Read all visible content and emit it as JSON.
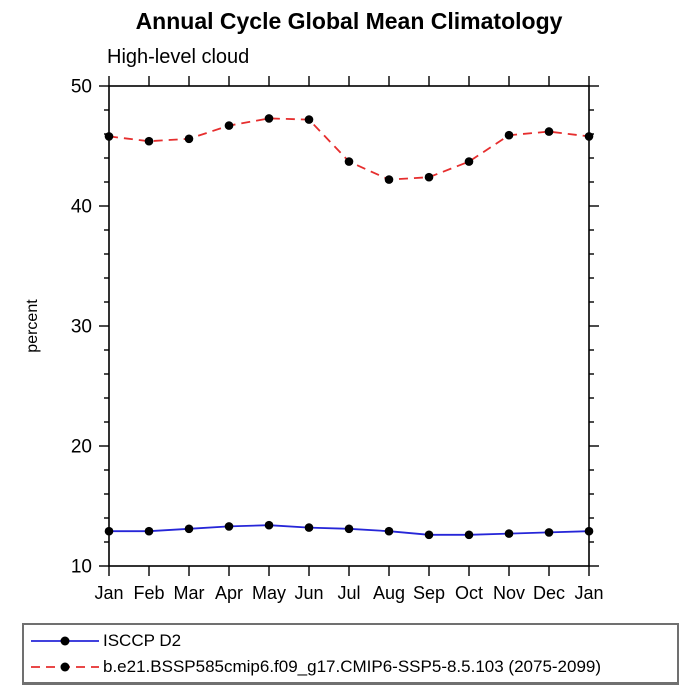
{
  "header": {
    "title": "Annual Cycle Global Mean Climatology",
    "subtitle": "High-level cloud"
  },
  "chart_data": {
    "type": "line",
    "title": "Annual Cycle Global Mean Climatology",
    "subtitle": "High-level cloud",
    "xlabel": "",
    "ylabel": "percent",
    "ylim": [
      10,
      50
    ],
    "ytick_major": [
      10,
      20,
      30,
      40,
      50
    ],
    "ytick_minor_step": 2,
    "grid": false,
    "axis_color": "#000000",
    "marker_color": "#000000",
    "categories": [
      "Jan",
      "Feb",
      "Mar",
      "Apr",
      "May",
      "Jun",
      "Jul",
      "Aug",
      "Sep",
      "Oct",
      "Nov",
      "Dec",
      "Jan"
    ],
    "series": [
      {
        "name": "ISCCP D2",
        "line_style": "solid",
        "color": "#2626d8",
        "values": [
          12.9,
          12.9,
          13.1,
          13.3,
          13.4,
          13.2,
          13.1,
          12.9,
          12.6,
          12.6,
          12.7,
          12.8,
          12.9
        ]
      },
      {
        "name": "b.e21.BSSP585cmip6.f09_g17.CMIP6-SSP5-8.5.103 (2075-2099)",
        "line_style": "dashed",
        "color": "#e62e2e",
        "values": [
          45.8,
          45.4,
          45.6,
          46.7,
          47.3,
          47.2,
          43.7,
          42.2,
          42.4,
          43.7,
          45.9,
          46.2,
          45.8
        ]
      }
    ],
    "legend_position": "bottom"
  }
}
